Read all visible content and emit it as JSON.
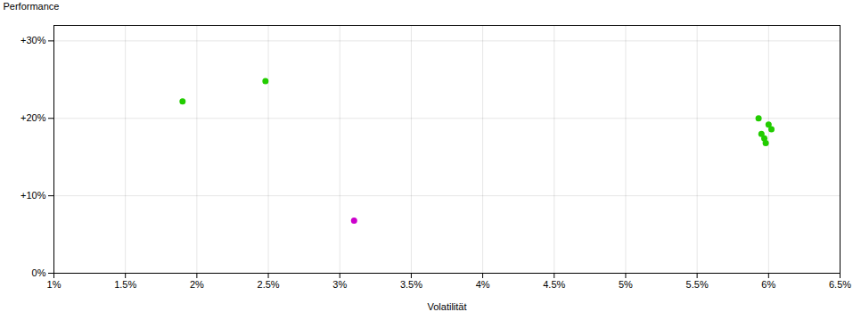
{
  "chart_data": {
    "type": "scatter",
    "x_label": "Volatilität",
    "y_label": "Performance",
    "xlim": [
      0.01,
      0.065
    ],
    "ylim": [
      0.0,
      0.32
    ],
    "xticks": [
      {
        "value": 0.01,
        "label": "1%"
      },
      {
        "value": 0.015,
        "label": "1.5%"
      },
      {
        "value": 0.02,
        "label": "2%"
      },
      {
        "value": 0.025,
        "label": "2.5%"
      },
      {
        "value": 0.03,
        "label": "3%"
      },
      {
        "value": 0.035,
        "label": "3.5%"
      },
      {
        "value": 0.04,
        "label": "4%"
      },
      {
        "value": 0.045,
        "label": "4.5%"
      },
      {
        "value": 0.05,
        "label": "5%"
      },
      {
        "value": 0.055,
        "label": "5.5%"
      },
      {
        "value": 0.06,
        "label": "6%"
      },
      {
        "value": 0.065,
        "label": "6.5%"
      }
    ],
    "yticks": [
      {
        "value": 0.0,
        "label": "0%"
      },
      {
        "value": 0.1,
        "label": "+10%"
      },
      {
        "value": 0.2,
        "label": "+20%"
      },
      {
        "value": 0.3,
        "label": "+30%"
      }
    ],
    "grid": true,
    "series": [
      {
        "color": "#22cc00",
        "marker": "circle",
        "x": [
          0.019,
          0.0248,
          0.0593,
          0.06,
          0.0602,
          0.0595,
          0.0597,
          0.0598
        ],
        "values": [
          0.222,
          0.248,
          0.2,
          0.192,
          0.186,
          0.18,
          0.174,
          0.168
        ]
      },
      {
        "color": "#cc00cc",
        "marker": "circle",
        "x": [
          0.031
        ],
        "values": [
          0.068
        ]
      }
    ]
  }
}
